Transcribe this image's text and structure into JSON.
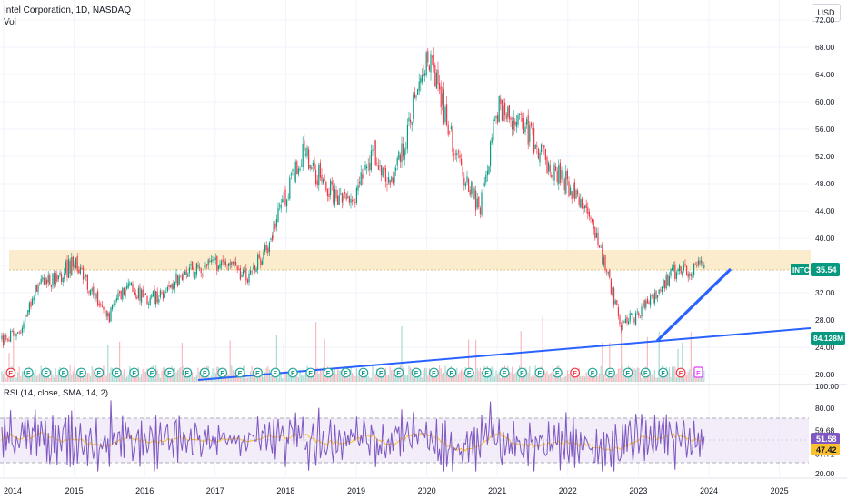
{
  "header": {
    "symbol_line": "Intel Corporation, 1D, NASDAQ",
    "indicator": "Vol",
    "currency_button": "USD"
  },
  "price_axis": {
    "ticks": [
      "72.00",
      "68.00",
      "64.00",
      "60.00",
      "56.00",
      "52.00",
      "48.00",
      "44.00",
      "40.00",
      "36.00",
      "32.00",
      "28.00",
      "24.00",
      "20.00"
    ],
    "last_price_label": "INTC",
    "last_price": "35.54",
    "volume_label": "84.128M",
    "colors": {
      "last_price": "#089981",
      "volume": "#089981"
    }
  },
  "rsi_pane": {
    "title": "RSI (14, close, SMA, 14, 2)",
    "ticks": [
      "100.00",
      "80.00",
      "59.68",
      "37.71",
      "20.00"
    ],
    "rsi_value": "51.58",
    "sma_value": "47.42",
    "colors": {
      "rsi": "#7e57c2",
      "sma": "#fbc02d",
      "band": "#ede7f6"
    }
  },
  "time_axis": {
    "labels": [
      "2014",
      "2015",
      "2016",
      "2017",
      "2018",
      "2019",
      "2020",
      "2021",
      "2022",
      "2023",
      "2024",
      "2025"
    ]
  },
  "events": {
    "earnings_letter": "E"
  },
  "chart_data": {
    "type": "candlestick",
    "symbol": "INTC",
    "interval": "1D",
    "exchange": "NASDAQ",
    "ylim": [
      20,
      72
    ],
    "x_range": [
      "2014",
      "2025"
    ],
    "closes_approx": [
      [
        "2014-01",
        25.0
      ],
      [
        "2014-04",
        26.5
      ],
      [
        "2014-07",
        33.5
      ],
      [
        "2014-10",
        34.0
      ],
      [
        "2015-01",
        36.5
      ],
      [
        "2015-04",
        32.5
      ],
      [
        "2015-07",
        28.5
      ],
      [
        "2015-10",
        33.5
      ],
      [
        "2016-01",
        31.0
      ],
      [
        "2016-04",
        31.5
      ],
      [
        "2016-07",
        34.5
      ],
      [
        "2016-10",
        35.5
      ],
      [
        "2017-01",
        36.5
      ],
      [
        "2017-04",
        35.5
      ],
      [
        "2017-07",
        34.5
      ],
      [
        "2017-10",
        39.0
      ],
      [
        "2018-01",
        46.5
      ],
      [
        "2018-04",
        52.5
      ],
      [
        "2018-07",
        48.5
      ],
      [
        "2018-10",
        46.0
      ],
      [
        "2019-01",
        46.5
      ],
      [
        "2019-04",
        53.0
      ],
      [
        "2019-07",
        48.0
      ],
      [
        "2019-10",
        56.5
      ],
      [
        "2020-01",
        67.0
      ],
      [
        "2020-04",
        58.5
      ],
      [
        "2020-07",
        49.5
      ],
      [
        "2020-10",
        44.5
      ],
      [
        "2021-01",
        59.0
      ],
      [
        "2021-04",
        57.5
      ],
      [
        "2021-07",
        54.5
      ],
      [
        "2021-10",
        50.0
      ],
      [
        "2022-01",
        48.0
      ],
      [
        "2022-04",
        44.0
      ],
      [
        "2022-07",
        37.0
      ],
      [
        "2022-10",
        27.0
      ],
      [
        "2023-01",
        29.0
      ],
      [
        "2023-04",
        31.5
      ],
      [
        "2023-07",
        35.0
      ],
      [
        "2023-10",
        35.54
      ]
    ],
    "resistance_zone": [
      34.8,
      37.7
    ],
    "rsi_levels": [
      70,
      30
    ],
    "annotations": [
      "rising trendline 2014–2024",
      "steep trendline from 2023 low"
    ]
  }
}
